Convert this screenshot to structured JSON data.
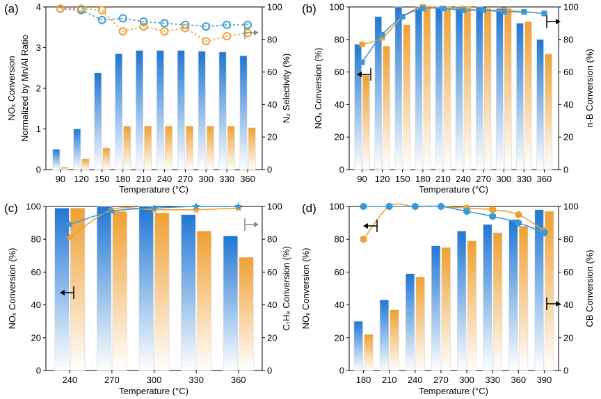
{
  "chart_data": [
    {
      "type": "bar",
      "panel_label": "(a)",
      "xlabel": "Temperature (°C)",
      "ylabel_left_line1": "NOₓ Conversion",
      "ylabel_left_line2": "Normalized by Mn/Al Ratio",
      "ylabel_right": "N₂ Selectivity (%)",
      "categories": [
        "90",
        "120",
        "150",
        "180",
        "210",
        "240",
        "270",
        "300",
        "330",
        "360"
      ],
      "ylim_left": [
        0,
        4
      ],
      "yticks_left": [
        "0",
        "1",
        "2",
        "3",
        "4"
      ],
      "ylim_right": [
        0,
        100
      ],
      "yticks_right": [
        "0",
        "20",
        "40",
        "60",
        "80",
        "100"
      ],
      "series": [
        {
          "values": [
            0.5,
            1.0,
            2.38,
            2.85,
            2.93,
            2.93,
            2.93,
            2.91,
            2.89,
            2.8
          ],
          "color": "#1f77d4",
          "kind": "bar",
          "axis": "left"
        },
        {
          "values": [
            0.06,
            0.26,
            0.53,
            1.07,
            1.07,
            1.07,
            1.07,
            1.07,
            1.07,
            1.03
          ],
          "color": "#f0a030",
          "kind": "bar",
          "axis": "left"
        },
        {
          "values": [
            99,
            98,
            92,
            93,
            91,
            90,
            89,
            88,
            89,
            89
          ],
          "color": "#3a9ad9",
          "kind": "line-open",
          "axis": "right"
        },
        {
          "values": [
            99,
            99,
            98,
            85,
            88,
            85,
            87,
            79,
            82,
            84
          ],
          "color": "#f0a030",
          "kind": "line-open",
          "axis": "right"
        }
      ],
      "arrows": [
        {
          "direction": "right",
          "color": "#888888"
        }
      ]
    },
    {
      "type": "bar",
      "panel_label": "(b)",
      "xlabel": "Temperature (°C)",
      "ylabel_left": "NOₓ Conversion (%)",
      "ylabel_right": "n-B Conversion (%)",
      "categories": [
        "90",
        "120",
        "150",
        "180",
        "210",
        "240",
        "270",
        "300",
        "330",
        "360"
      ],
      "ylim_left": [
        0,
        100
      ],
      "yticks_left": [
        "0",
        "20",
        "40",
        "60",
        "80",
        "100"
      ],
      "ylim_right": [
        0,
        100
      ],
      "yticks_right": [
        "0",
        "20",
        "40",
        "60",
        "80",
        "100"
      ],
      "series": [
        {
          "values": [
            77,
            94,
            100,
            100,
            100,
            100,
            100,
            99,
            90,
            80
          ],
          "color": "#1f77d4",
          "kind": "bar",
          "axis": "left"
        },
        {
          "values": [
            58,
            76,
            89,
            100,
            100,
            100,
            99,
            99,
            91,
            71
          ],
          "color": "#f0a030",
          "kind": "bar",
          "axis": "left"
        },
        {
          "values": [
            77,
            81,
            94,
            100,
            99,
            99,
            98,
            98,
            97,
            96
          ],
          "color": "#f0a030",
          "kind": "line-square",
          "axis": "right"
        },
        {
          "values": [
            66,
            83,
            94,
            99,
            99,
            98,
            98,
            97,
            97,
            96
          ],
          "color": "#3a9ad9",
          "kind": "line-square",
          "axis": "right"
        }
      ],
      "arrows": [
        {
          "direction": "left",
          "color": "#000000"
        },
        {
          "direction": "right",
          "color": "#000000"
        }
      ]
    },
    {
      "type": "bar",
      "panel_label": "(c)",
      "xlabel": "Temperature (°C)",
      "ylabel_left": "NOₓ Conversion (%)",
      "ylabel_right": "C₇H₈ Conversion (%)",
      "categories": [
        "240",
        "270",
        "300",
        "330",
        "360"
      ],
      "ylim_left": [
        0,
        100
      ],
      "yticks_left": [
        "0",
        "20",
        "40",
        "60",
        "80",
        "100"
      ],
      "ylim_right": [
        0,
        100
      ],
      "yticks_right": [
        "0",
        "20",
        "40",
        "60",
        "80",
        "100"
      ],
      "series": [
        {
          "values": [
            99,
            100,
            100,
            95,
            82
          ],
          "color": "#1f77d4",
          "kind": "bar",
          "axis": "left"
        },
        {
          "values": [
            99,
            97,
            96,
            85,
            69
          ],
          "color": "#f0a030",
          "kind": "bar",
          "axis": "left"
        },
        {
          "values": [
            81,
            98,
            98,
            98,
            99
          ],
          "color": "#f0a030",
          "kind": "line-star",
          "axis": "right"
        },
        {
          "values": [
            89,
            97,
            99,
            100,
            100
          ],
          "color": "#3a9ad9",
          "kind": "line-star",
          "axis": "right"
        }
      ],
      "arrows": [
        {
          "direction": "left",
          "color": "#000000"
        },
        {
          "direction": "right",
          "color": "#888888"
        }
      ]
    },
    {
      "type": "bar",
      "panel_label": "(d)",
      "xlabel": "Temperature (°C)",
      "ylabel_left": "NOₓ Conversion (%)",
      "ylabel_right": "CB Conversion (%)",
      "categories": [
        "180",
        "210",
        "240",
        "270",
        "300",
        "330",
        "360",
        "390"
      ],
      "ylim_left": [
        0,
        100
      ],
      "yticks_left": [
        "0",
        "20",
        "40",
        "60",
        "80",
        "100"
      ],
      "ylim_right": [
        0,
        100
      ],
      "yticks_right": [
        "0",
        "20",
        "40",
        "60",
        "80",
        "100"
      ],
      "series": [
        {
          "values": [
            30,
            43,
            59,
            76,
            85,
            89,
            92,
            98
          ],
          "color": "#1f77d4",
          "kind": "bar",
          "axis": "left"
        },
        {
          "values": [
            22,
            37,
            57,
            75,
            79,
            84,
            88,
            97
          ],
          "color": "#f0a030",
          "kind": "bar",
          "axis": "left"
        },
        {
          "values": [
            80,
            100,
            100,
            100,
            99,
            98,
            95,
            85
          ],
          "color": "#f0a030",
          "kind": "line-hex",
          "axis": "right"
        },
        {
          "values": [
            100,
            100,
            100,
            100,
            97,
            94,
            90,
            84
          ],
          "color": "#3a9ad9",
          "kind": "line-hex",
          "axis": "right"
        }
      ],
      "arrows": [
        {
          "direction": "left",
          "color": "#000000"
        },
        {
          "direction": "right",
          "color": "#000000"
        }
      ]
    }
  ]
}
